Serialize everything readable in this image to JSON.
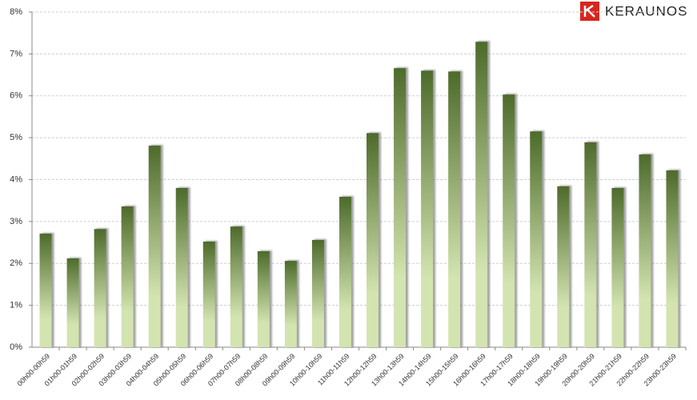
{
  "chart_data": {
    "type": "bar",
    "logo_text": "KERAUNOS",
    "categories": [
      "00h00-00h59",
      "01h00-01h59",
      "02h00-02h59",
      "03h00-03h59",
      "04h00-04h59",
      "05h00-05h59",
      "06h00-06h59",
      "07h00-07h59",
      "08h00-08h59",
      "09h00-09h59",
      "10h00-10h59",
      "11h00-11h59",
      "12h00-12h59",
      "13h00-13h59",
      "14h00-14h59",
      "15h00-15h59",
      "16h00-16h59",
      "17h00-17h59",
      "18h00-18h59",
      "19h00-19h59",
      "20h00-20h59",
      "21h00-21h59",
      "22h00-22h59",
      "23h00-23h59"
    ],
    "values": [
      2.71,
      2.12,
      2.82,
      3.36,
      4.81,
      3.8,
      2.52,
      2.88,
      2.29,
      2.06,
      2.56,
      3.59,
      5.11,
      6.66,
      6.6,
      6.58,
      7.29,
      6.03,
      5.15,
      3.84,
      4.89,
      3.8,
      4.6,
      4.22
    ],
    "gradient": [
      "#4d6b2b",
      "#d3e4b0"
    ],
    "ylim": [
      0,
      8
    ],
    "yticks": [
      {
        "value": 0,
        "label": "0%"
      },
      {
        "value": 1,
        "label": "1%"
      },
      {
        "value": 2,
        "label": "2%"
      },
      {
        "value": 3,
        "label": "3%"
      },
      {
        "value": 4,
        "label": "4%"
      },
      {
        "value": 5,
        "label": "5%"
      },
      {
        "value": 6,
        "label": "6%"
      },
      {
        "value": 7,
        "label": "7%"
      },
      {
        "value": 8,
        "label": "8%"
      }
    ],
    "grid": true
  }
}
